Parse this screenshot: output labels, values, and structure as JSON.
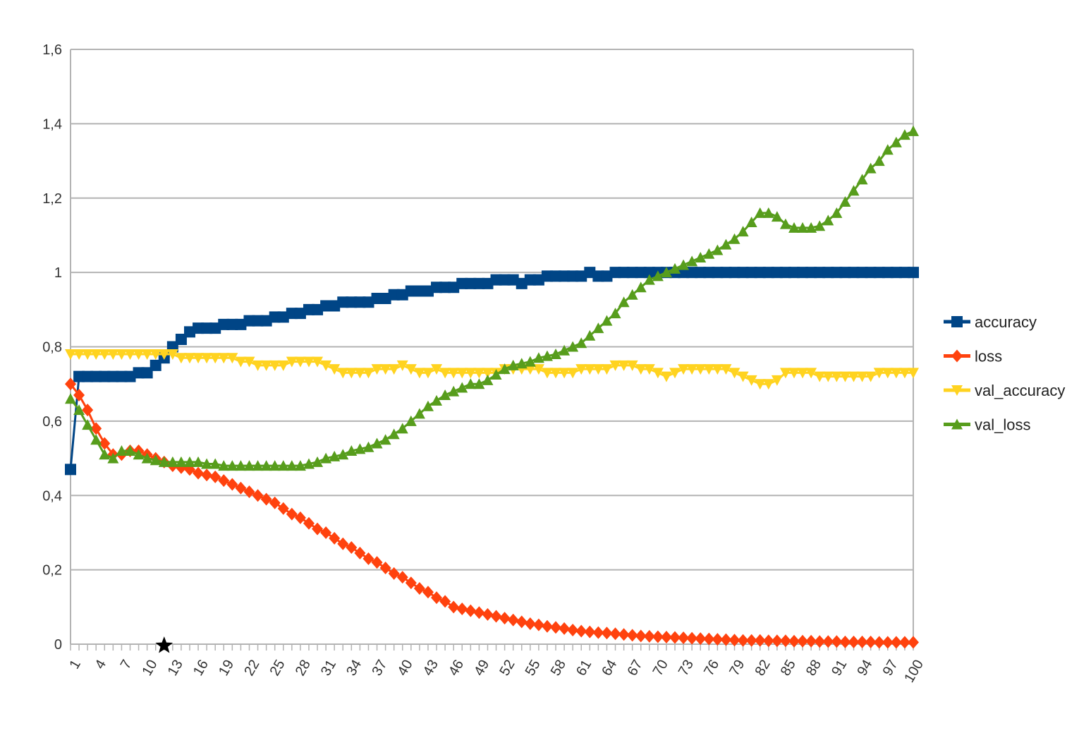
{
  "chart_data": {
    "type": "line",
    "title": "",
    "xlabel": "",
    "ylabel": "",
    "ylim": [
      0,
      1.6
    ],
    "yticks": [
      "0",
      "0,2",
      "0,4",
      "0,6",
      "0,8",
      "1",
      "1,2",
      "1,4",
      "1,6"
    ],
    "ytick_values": [
      0,
      0.2,
      0.4,
      0.6,
      0.8,
      1.0,
      1.2,
      1.4,
      1.6
    ],
    "xlim": [
      1,
      100
    ],
    "xtick_labels": [
      "1",
      "4",
      "7",
      "10",
      "13",
      "16",
      "19",
      "22",
      "25",
      "28",
      "31",
      "34",
      "37",
      "40",
      "43",
      "46",
      "49",
      "52",
      "55",
      "58",
      "61",
      "64",
      "67",
      "70",
      "73",
      "76",
      "79",
      "82",
      "85",
      "88",
      "91",
      "94",
      "97",
      "100"
    ],
    "grid": true,
    "legend_position": "right",
    "annotation": {
      "type": "star-marker",
      "x": 12,
      "y": 0
    },
    "series": [
      {
        "name": "accuracy",
        "color": "#004586",
        "marker": "square",
        "values": [
          0.47,
          0.72,
          0.72,
          0.72,
          0.72,
          0.72,
          0.72,
          0.72,
          0.73,
          0.73,
          0.75,
          0.77,
          0.8,
          0.82,
          0.84,
          0.85,
          0.85,
          0.85,
          0.86,
          0.86,
          0.86,
          0.87,
          0.87,
          0.87,
          0.88,
          0.88,
          0.89,
          0.89,
          0.9,
          0.9,
          0.91,
          0.91,
          0.92,
          0.92,
          0.92,
          0.92,
          0.93,
          0.93,
          0.94,
          0.94,
          0.95,
          0.95,
          0.95,
          0.96,
          0.96,
          0.96,
          0.97,
          0.97,
          0.97,
          0.97,
          0.98,
          0.98,
          0.98,
          0.97,
          0.98,
          0.98,
          0.99,
          0.99,
          0.99,
          0.99,
          0.99,
          1.0,
          0.99,
          0.99,
          1.0,
          1.0,
          1.0,
          1.0,
          1.0,
          1.0,
          1.0,
          1.0,
          1.0,
          1.0,
          1.0,
          1.0,
          1.0,
          1.0,
          1.0,
          1.0,
          1.0,
          1.0,
          1.0,
          1.0,
          1.0,
          1.0,
          1.0,
          1.0,
          1.0,
          1.0,
          1.0,
          1.0,
          1.0,
          1.0,
          1.0,
          1.0,
          1.0,
          1.0,
          1.0,
          1.0
        ]
      },
      {
        "name": "loss",
        "color": "#ff420e",
        "marker": "diamond",
        "values": [
          0.7,
          0.67,
          0.63,
          0.58,
          0.54,
          0.51,
          0.51,
          0.52,
          0.52,
          0.51,
          0.5,
          0.49,
          0.48,
          0.475,
          0.47,
          0.46,
          0.455,
          0.45,
          0.44,
          0.43,
          0.42,
          0.41,
          0.4,
          0.39,
          0.38,
          0.365,
          0.35,
          0.34,
          0.325,
          0.31,
          0.3,
          0.285,
          0.27,
          0.26,
          0.245,
          0.23,
          0.22,
          0.205,
          0.19,
          0.18,
          0.165,
          0.15,
          0.14,
          0.125,
          0.115,
          0.1,
          0.095,
          0.09,
          0.085,
          0.08,
          0.075,
          0.07,
          0.065,
          0.06,
          0.055,
          0.052,
          0.048,
          0.045,
          0.042,
          0.038,
          0.035,
          0.033,
          0.031,
          0.03,
          0.028,
          0.026,
          0.024,
          0.022,
          0.021,
          0.02,
          0.019,
          0.018,
          0.017,
          0.016,
          0.015,
          0.014,
          0.013,
          0.012,
          0.011,
          0.01,
          0.01,
          0.01,
          0.009,
          0.009,
          0.009,
          0.008,
          0.008,
          0.008,
          0.007,
          0.007,
          0.007,
          0.006,
          0.006,
          0.006,
          0.006,
          0.005,
          0.005,
          0.005,
          0.005,
          0.005
        ]
      },
      {
        "name": "val_accuracy",
        "color": "#ffd320",
        "marker": "triangle-down",
        "values": [
          0.78,
          0.78,
          0.78,
          0.78,
          0.78,
          0.78,
          0.78,
          0.78,
          0.78,
          0.78,
          0.78,
          0.78,
          0.78,
          0.77,
          0.77,
          0.77,
          0.77,
          0.77,
          0.77,
          0.77,
          0.76,
          0.76,
          0.75,
          0.75,
          0.75,
          0.75,
          0.76,
          0.76,
          0.76,
          0.76,
          0.75,
          0.74,
          0.73,
          0.73,
          0.73,
          0.73,
          0.74,
          0.74,
          0.74,
          0.75,
          0.74,
          0.73,
          0.73,
          0.74,
          0.73,
          0.73,
          0.73,
          0.73,
          0.73,
          0.73,
          0.73,
          0.74,
          0.74,
          0.74,
          0.74,
          0.74,
          0.73,
          0.73,
          0.73,
          0.73,
          0.74,
          0.74,
          0.74,
          0.74,
          0.75,
          0.75,
          0.75,
          0.74,
          0.74,
          0.73,
          0.72,
          0.73,
          0.74,
          0.74,
          0.74,
          0.74,
          0.74,
          0.74,
          0.73,
          0.72,
          0.71,
          0.7,
          0.7,
          0.71,
          0.73,
          0.73,
          0.73,
          0.73,
          0.72,
          0.72,
          0.72,
          0.72,
          0.72,
          0.72,
          0.72,
          0.73,
          0.73,
          0.73,
          0.73,
          0.73
        ]
      },
      {
        "name": "val_loss",
        "color": "#579d1c",
        "marker": "triangle-up",
        "values": [
          0.66,
          0.63,
          0.59,
          0.55,
          0.51,
          0.5,
          0.52,
          0.52,
          0.51,
          0.5,
          0.495,
          0.49,
          0.49,
          0.49,
          0.49,
          0.49,
          0.485,
          0.485,
          0.48,
          0.48,
          0.48,
          0.48,
          0.48,
          0.48,
          0.48,
          0.48,
          0.48,
          0.48,
          0.485,
          0.49,
          0.5,
          0.505,
          0.51,
          0.52,
          0.525,
          0.53,
          0.54,
          0.55,
          0.565,
          0.58,
          0.6,
          0.62,
          0.64,
          0.655,
          0.67,
          0.68,
          0.69,
          0.7,
          0.7,
          0.71,
          0.725,
          0.74,
          0.75,
          0.755,
          0.76,
          0.77,
          0.775,
          0.78,
          0.79,
          0.8,
          0.81,
          0.83,
          0.85,
          0.87,
          0.89,
          0.92,
          0.94,
          0.96,
          0.98,
          0.99,
          1.0,
          1.01,
          1.02,
          1.03,
          1.04,
          1.05,
          1.06,
          1.075,
          1.09,
          1.11,
          1.135,
          1.16,
          1.16,
          1.15,
          1.13,
          1.12,
          1.12,
          1.12,
          1.125,
          1.14,
          1.16,
          1.19,
          1.22,
          1.25,
          1.28,
          1.3,
          1.33,
          1.35,
          1.37,
          1.38
        ]
      }
    ]
  }
}
